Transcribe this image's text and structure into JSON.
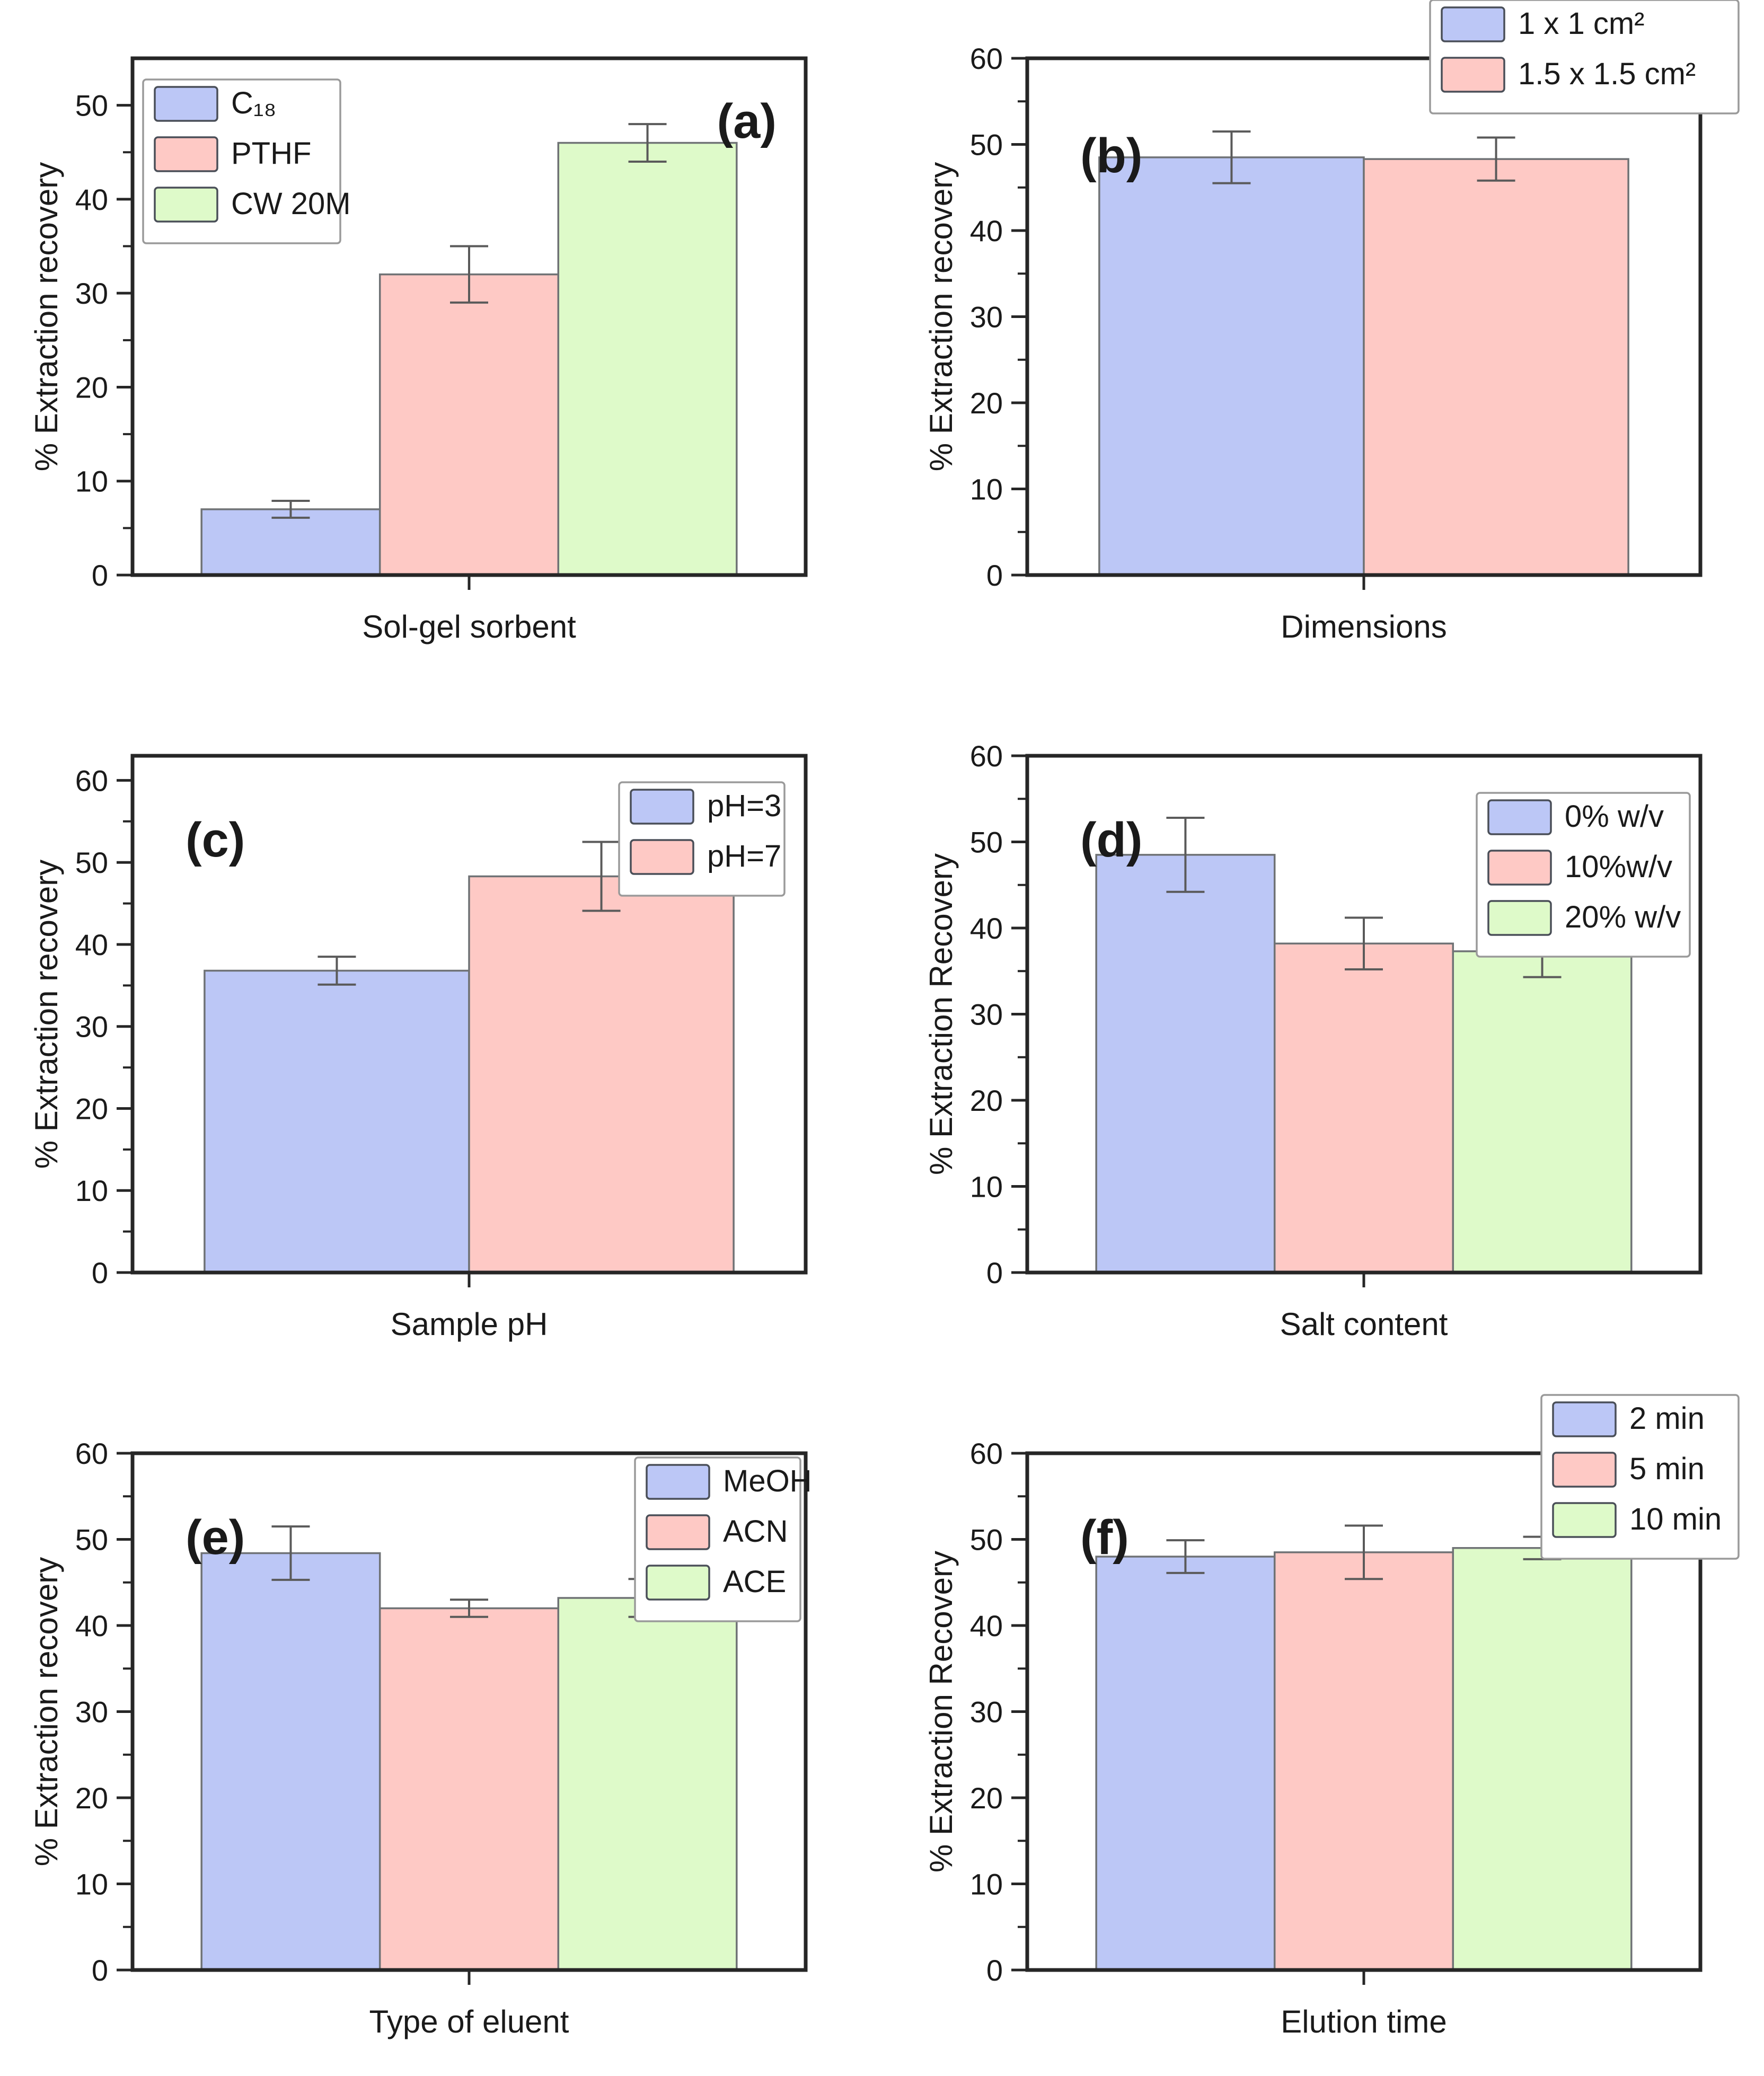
{
  "figure": {
    "description": "Optimization of extraction parameters, six bar-chart panels (a)-(f) showing % extraction recovery under varied conditions",
    "background": "#ffffff"
  },
  "colors": {
    "blue": "#bcc7f6",
    "pink": "#fec9c5",
    "green": "#defac9",
    "bar_stroke": "#6f7275",
    "frame": "#262626",
    "error_bar": "#5a5a5a",
    "legend_border": "#9a9a9a",
    "legend_bg": "#ffffff",
    "text": "#1a1a1a"
  },
  "chart_data": [
    {
      "id": "a",
      "type": "bar",
      "panel_label": "(a)",
      "panel_label_pos": "top-right",
      "xlabel": "Sol-gel sorbent",
      "ylabel": "% Extraction recovery",
      "ylim": [
        0,
        55
      ],
      "yticks": [
        0,
        10,
        20,
        30,
        40,
        50
      ],
      "minor_tick_step": 5,
      "grid": false,
      "legend_position": "inside-top-left",
      "series": [
        {
          "name": "C₁₈",
          "value": 7,
          "error": 0.9,
          "color_key": "blue"
        },
        {
          "name": "PTHF",
          "value": 32,
          "error": 3.0,
          "color_key": "pink"
        },
        {
          "name": "CW 20M",
          "value": 46,
          "error": 2.0,
          "color_key": "green"
        }
      ]
    },
    {
      "id": "b",
      "type": "bar",
      "panel_label": "(b)",
      "panel_label_pos": "top-left",
      "xlabel": "Dimensions",
      "ylabel": "% Extraction recovery",
      "ylim": [
        0,
        60
      ],
      "yticks": [
        0,
        10,
        20,
        30,
        40,
        50,
        60
      ],
      "minor_tick_step": 5,
      "grid": false,
      "legend_position": "outside-top-right",
      "series": [
        {
          "name": "1 x 1 cm²",
          "value": 48.5,
          "error": 3.0,
          "color_key": "blue"
        },
        {
          "name": "1.5 x 1.5 cm²",
          "value": 48.3,
          "error": 2.5,
          "color_key": "pink"
        }
      ]
    },
    {
      "id": "c",
      "type": "bar",
      "panel_label": "(c)",
      "panel_label_pos": "top-left",
      "xlabel": "Sample pH",
      "ylabel": "% Extraction recovery",
      "ylim": [
        0,
        63
      ],
      "yticks": [
        0,
        10,
        20,
        30,
        40,
        50,
        60
      ],
      "minor_tick_step": 5,
      "grid": false,
      "legend_position": "inside-top-right",
      "series": [
        {
          "name": "pH=3",
          "value": 36.8,
          "error": 1.7,
          "color_key": "blue"
        },
        {
          "name": "pH=7",
          "value": 48.3,
          "error": 4.2,
          "color_key": "pink"
        }
      ]
    },
    {
      "id": "d",
      "type": "bar",
      "panel_label": "(d)",
      "panel_label_pos": "top-left",
      "xlabel": "Salt content",
      "ylabel": "% Extraction Recovery",
      "ylim": [
        0,
        60
      ],
      "yticks": [
        0,
        10,
        20,
        30,
        40,
        50,
        60
      ],
      "minor_tick_step": 5,
      "grid": false,
      "legend_position": "inside-top-right",
      "series": [
        {
          "name": "0% w/v",
          "value": 48.5,
          "error": 4.3,
          "color_key": "blue"
        },
        {
          "name": "10%w/v",
          "value": 38.2,
          "error": 3.0,
          "color_key": "pink"
        },
        {
          "name": "20% w/v",
          "value": 37.3,
          "error": 3.0,
          "color_key": "green"
        }
      ]
    },
    {
      "id": "e",
      "type": "bar",
      "panel_label": "(e)",
      "panel_label_pos": "top-left",
      "xlabel": "Type of eluent",
      "ylabel": "% Extraction recovery",
      "ylim": [
        0,
        60
      ],
      "yticks": [
        0,
        10,
        20,
        30,
        40,
        50,
        60
      ],
      "minor_tick_step": 5,
      "grid": false,
      "legend_position": "inside-top-right-edge",
      "series": [
        {
          "name": "MeOH",
          "value": 48.4,
          "error": 3.1,
          "color_key": "blue"
        },
        {
          "name": "ACN",
          "value": 42.0,
          "error": 1.0,
          "color_key": "pink"
        },
        {
          "name": "ACE",
          "value": 43.2,
          "error": 2.2,
          "color_key": "green"
        }
      ]
    },
    {
      "id": "f",
      "type": "bar",
      "panel_label": "(f)",
      "panel_label_pos": "top-left",
      "xlabel": "Elution time",
      "ylabel": "% Extraction Recovery",
      "ylim": [
        0,
        60
      ],
      "yticks": [
        0,
        10,
        20,
        30,
        40,
        50,
        60
      ],
      "minor_tick_step": 5,
      "grid": false,
      "legend_position": "outside-top-right",
      "series": [
        {
          "name": "2 min",
          "value": 48.0,
          "error": 1.9,
          "color_key": "blue"
        },
        {
          "name": "5 min",
          "value": 48.5,
          "error": 3.1,
          "color_key": "pink"
        },
        {
          "name": "10 min",
          "value": 49.0,
          "error": 1.3,
          "color_key": "green"
        }
      ]
    }
  ]
}
